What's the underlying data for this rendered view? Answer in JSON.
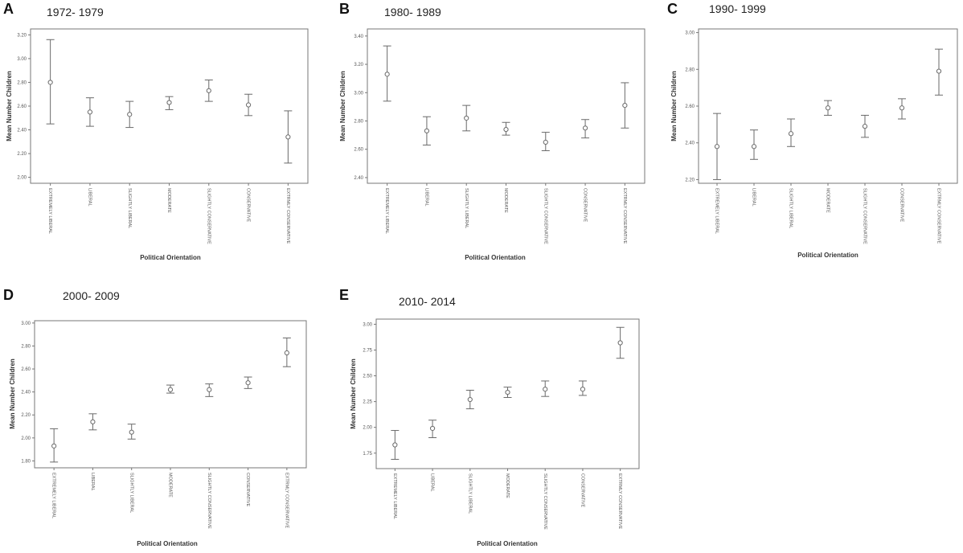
{
  "figure": {
    "xlabel": "Political Orientation",
    "ylabel": "Mean Number Children",
    "categories": [
      "EXTREMELY LIBERAL",
      "LIBERAL",
      "SLIGHTLY LIBERAL",
      "MODERATE",
      "SLIGHTLY CONSERVATIVE",
      "CONSERVATIVE",
      "EXTRMLY CONSERVATIVE"
    ],
    "colors": {
      "frame": "#777777",
      "bar": "#6a6a6a",
      "text": "#222222"
    }
  },
  "chart_data": [
    {
      "letter": "A",
      "title": "1972- 1979",
      "type": "errorbar",
      "xlabel": "Political Orientation",
      "ylabel": "Mean Number Children",
      "ylim": [
        1.95,
        3.25
      ],
      "yticks": [
        2.0,
        2.2,
        2.4,
        2.6,
        2.8,
        3.0,
        3.2
      ],
      "ytick_labels": [
        "2.00",
        "2.20",
        "2.40",
        "2.60",
        "2.80",
        "3.00",
        "3.20"
      ],
      "categories": [
        "EXTREMELY LIBERAL",
        "LIBERAL",
        "SLIGHTLY LIBERAL",
        "MODERATE",
        "SLIGHTLY CONSERVATIVE",
        "CONSERVATIVE",
        "EXTRMLY CONSERVATIVE"
      ],
      "mean": [
        2.8,
        2.55,
        2.53,
        2.63,
        2.73,
        2.61,
        2.34
      ],
      "lower": [
        2.45,
        2.43,
        2.42,
        2.57,
        2.64,
        2.52,
        2.12
      ],
      "upper": [
        3.16,
        2.67,
        2.64,
        2.68,
        2.82,
        2.7,
        2.56
      ]
    },
    {
      "letter": "B",
      "title": "1980- 1989",
      "type": "errorbar",
      "xlabel": "Political Orientation",
      "ylabel": "Mean Number Children",
      "ylim": [
        2.36,
        3.45
      ],
      "yticks": [
        2.4,
        2.6,
        2.8,
        3.0,
        3.2,
        3.4
      ],
      "ytick_labels": [
        "2.40",
        "2.60",
        "2.80",
        "3.00",
        "3.20",
        "3.40"
      ],
      "categories": [
        "EXTREMELY LIBERAL",
        "LIBERAL",
        "SLIGHTLY LIBERAL",
        "MODERATE",
        "SLIGHTLY CONSERVATIVE",
        "CONSERVATIVE",
        "EXTRMLY CONSERVATIVE"
      ],
      "mean": [
        3.13,
        2.73,
        2.82,
        2.74,
        2.65,
        2.75,
        2.91
      ],
      "lower": [
        2.94,
        2.63,
        2.73,
        2.7,
        2.59,
        2.68,
        2.75
      ],
      "upper": [
        3.33,
        2.83,
        2.91,
        2.79,
        2.72,
        2.81,
        3.07
      ]
    },
    {
      "letter": "C",
      "title": "1990- 1999",
      "type": "errorbar",
      "xlabel": "Political Orientation",
      "ylabel": "Mean Number Children",
      "ylim": [
        2.18,
        3.02
      ],
      "yticks": [
        2.2,
        2.4,
        2.6,
        2.8,
        3.0
      ],
      "ytick_labels": [
        "2.20",
        "2.40",
        "2.60",
        "2.80",
        "3.00"
      ],
      "categories": [
        "EXTREMELY LIBERAL",
        "LIBERAL",
        "SLIGHTLY LIBERAL",
        "MODERATE",
        "SLIGHTLY CONSERVATIVE",
        "CONSERVATIVE",
        "EXTRMLY CONSERVATIVE"
      ],
      "mean": [
        2.38,
        2.38,
        2.45,
        2.59,
        2.49,
        2.59,
        2.79
      ],
      "lower": [
        2.2,
        2.31,
        2.38,
        2.55,
        2.43,
        2.53,
        2.66
      ],
      "upper": [
        2.56,
        2.47,
        2.53,
        2.63,
        2.55,
        2.64,
        2.91
      ]
    },
    {
      "letter": "D",
      "title": "2000- 2009",
      "type": "errorbar",
      "xlabel": "Political Orientation",
      "ylabel": "Mean Number Children",
      "ylim": [
        1.74,
        3.02
      ],
      "yticks": [
        1.8,
        2.0,
        2.2,
        2.4,
        2.6,
        2.8,
        3.0
      ],
      "ytick_labels": [
        "1.80",
        "2.00",
        "2.20",
        "2.40",
        "2.60",
        "2.80",
        "3.00"
      ],
      "categories": [
        "EXTREMELY LIBERAL",
        "LIBERAL",
        "SLIGHTLY LIBERAL",
        "MODERATE",
        "SLIGHTLY CONSERVATIVE",
        "CONSERVATIVE",
        "EXTRMLY CONSERVATIVE"
      ],
      "mean": [
        1.93,
        2.14,
        2.05,
        2.42,
        2.42,
        2.48,
        2.74
      ],
      "lower": [
        1.79,
        2.07,
        1.99,
        2.39,
        2.36,
        2.43,
        2.62
      ],
      "upper": [
        2.08,
        2.21,
        2.12,
        2.46,
        2.47,
        2.53,
        2.87
      ]
    },
    {
      "letter": "E",
      "title": "2010- 2014",
      "type": "errorbar",
      "xlabel": "Political Orientation",
      "ylabel": "Mean Number Children",
      "ylim": [
        1.6,
        3.05
      ],
      "yticks": [
        1.75,
        2.0,
        2.25,
        2.5,
        2.75,
        3.0
      ],
      "ytick_labels": [
        "1.75",
        "2.00",
        "2.25",
        "2.50",
        "2.75",
        "3.00"
      ],
      "categories": [
        "EXTREMELY LIBERAL",
        "LIBERAL",
        "SLIGHTLY LIBERAL",
        "MODERATE",
        "SLIGHTLY CONSERVATIVE",
        "CONSERVATIVE",
        "EXTRMLY CONSERVATIVE"
      ],
      "mean": [
        1.83,
        1.99,
        2.27,
        2.34,
        2.37,
        2.37,
        2.82
      ],
      "lower": [
        1.69,
        1.9,
        2.18,
        2.29,
        2.3,
        2.31,
        2.67
      ],
      "upper": [
        1.97,
        2.07,
        2.36,
        2.39,
        2.45,
        2.45,
        2.97
      ]
    }
  ]
}
